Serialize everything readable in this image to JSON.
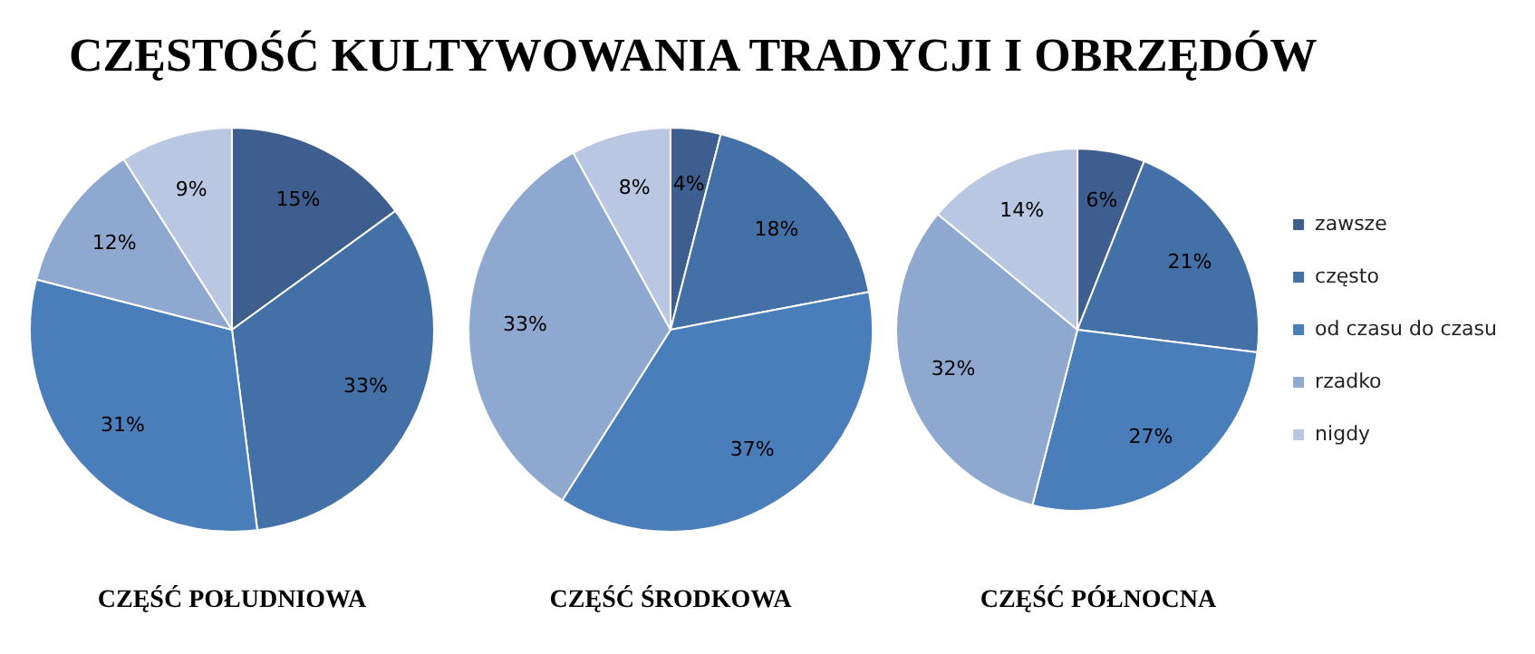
{
  "chart_data": [
    {
      "type": "pie",
      "title": "CZĘSTOŚĆ KULTYWOWANIA TRADYCJI I OBRZĘDÓW",
      "xlabel": "CZĘŚĆ POŁUDNIOWA",
      "categories": [
        null,
        null,
        null,
        null,
        null
      ],
      "values": [
        15,
        33,
        31,
        12,
        9
      ],
      "value_labels": [
        "15%",
        "33%",
        "31%",
        "12%",
        "9%"
      ],
      "colors": [
        "#3d5e8e",
        "#4470a8",
        "#4a7ebb",
        "#8fa8d0",
        "#b9c7e2"
      ],
      "legend": false
    },
    {
      "type": "pie",
      "xlabel": "CZĘŚĆ ŚRODKOWA",
      "categories": [
        null,
        null,
        null,
        null,
        null
      ],
      "values": [
        4,
        18,
        37,
        33,
        8
      ],
      "value_labels": [
        "4%",
        "18%",
        "37%",
        "33%",
        "8%"
      ],
      "colors": [
        "#3d5e8e",
        "#4470a8",
        "#4a7ebb",
        "#8fa8d0",
        "#b9c7e2"
      ],
      "legend": false
    },
    {
      "type": "pie",
      "xlabel": "CZĘŚĆ PÓŁNOCNA",
      "categories": [
        "zawsze",
        "często",
        "od czasu do czasu",
        "rzadko",
        "nigdy"
      ],
      "values": [
        6,
        21,
        27,
        32,
        14
      ],
      "value_labels": [
        "6%",
        "21%",
        "27%",
        "32%",
        "14%"
      ],
      "colors": [
        "#3d5e8e",
        "#4470a8",
        "#4a7ebb",
        "#8fa8d0",
        "#b9c7e2"
      ],
      "legend": "right"
    }
  ]
}
